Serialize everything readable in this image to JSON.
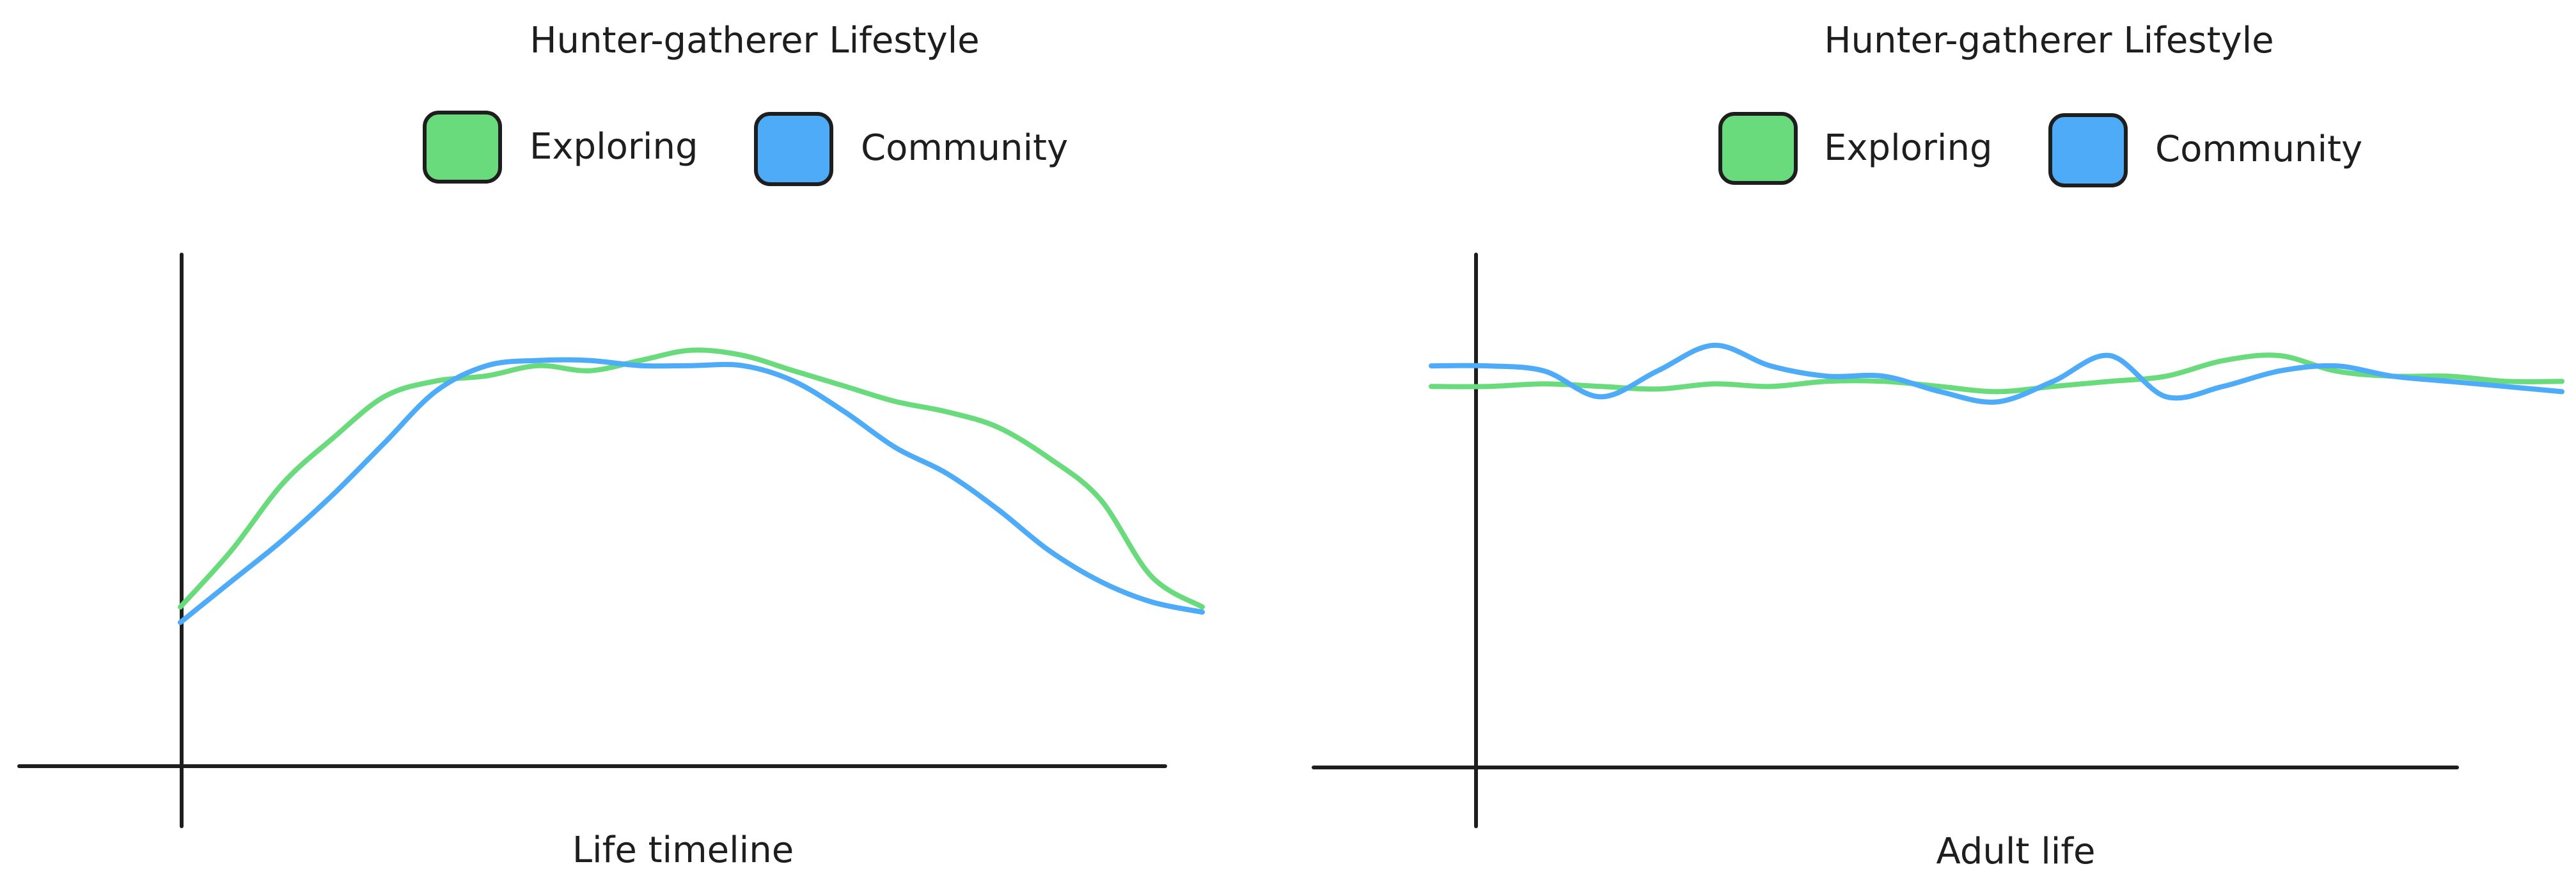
{
  "colors": {
    "exploring": "#69db7c",
    "community": "#4dabf7",
    "axis": "#1e1e1e",
    "background": "#ffffff"
  },
  "chart_data": [
    {
      "type": "line",
      "title": "Hunter-gatherer Lifestyle",
      "xlabel": "Life timeline",
      "ylabel": "",
      "legend_position": "top-center",
      "grid": false,
      "axis_ticks": false,
      "x": [
        0,
        0.05,
        0.1,
        0.15,
        0.2,
        0.25,
        0.3,
        0.35,
        0.4,
        0.45,
        0.5,
        0.55,
        0.6,
        0.65,
        0.7,
        0.75,
        0.8,
        0.85,
        0.9,
        0.95,
        1
      ],
      "xlim": [
        0,
        1
      ],
      "ylim": [
        0,
        1
      ],
      "series": [
        {
          "name": "Exploring",
          "color": "#69db7c",
          "values": [
            0.31,
            0.42,
            0.55,
            0.64,
            0.72,
            0.75,
            0.76,
            0.78,
            0.77,
            0.79,
            0.81,
            0.8,
            0.77,
            0.74,
            0.71,
            0.69,
            0.66,
            0.6,
            0.52,
            0.37,
            0.31
          ]
        },
        {
          "name": "Community",
          "color": "#4dabf7",
          "values": [
            0.28,
            0.36,
            0.44,
            0.53,
            0.63,
            0.73,
            0.78,
            0.79,
            0.79,
            0.78,
            0.78,
            0.78,
            0.75,
            0.69,
            0.62,
            0.57,
            0.5,
            0.42,
            0.36,
            0.32,
            0.3
          ]
        }
      ]
    },
    {
      "type": "line",
      "title": "Hunter-gatherer Lifestyle",
      "xlabel": "Adult life",
      "ylabel": "",
      "legend_position": "top-center",
      "grid": false,
      "axis_ticks": false,
      "x": [
        0,
        0.05,
        0.1,
        0.15,
        0.2,
        0.25,
        0.3,
        0.35,
        0.4,
        0.45,
        0.5,
        0.55,
        0.6,
        0.65,
        0.7,
        0.75,
        0.8,
        0.85,
        0.9,
        0.95,
        1
      ],
      "xlim": [
        0,
        1
      ],
      "ylim": [
        0,
        1
      ],
      "series": [
        {
          "name": "Exploring",
          "color": "#69db7c",
          "values": [
            0.74,
            0.74,
            0.745,
            0.74,
            0.735,
            0.745,
            0.74,
            0.75,
            0.75,
            0.74,
            0.73,
            0.74,
            0.75,
            0.76,
            0.79,
            0.8,
            0.77,
            0.76,
            0.76,
            0.75,
            0.75
          ]
        },
        {
          "name": "Community",
          "color": "#4dabf7",
          "values": [
            0.78,
            0.78,
            0.77,
            0.72,
            0.77,
            0.82,
            0.78,
            0.76,
            0.76,
            0.73,
            0.71,
            0.75,
            0.8,
            0.72,
            0.74,
            0.77,
            0.78,
            0.76,
            0.75,
            0.74,
            0.73
          ]
        }
      ]
    }
  ]
}
